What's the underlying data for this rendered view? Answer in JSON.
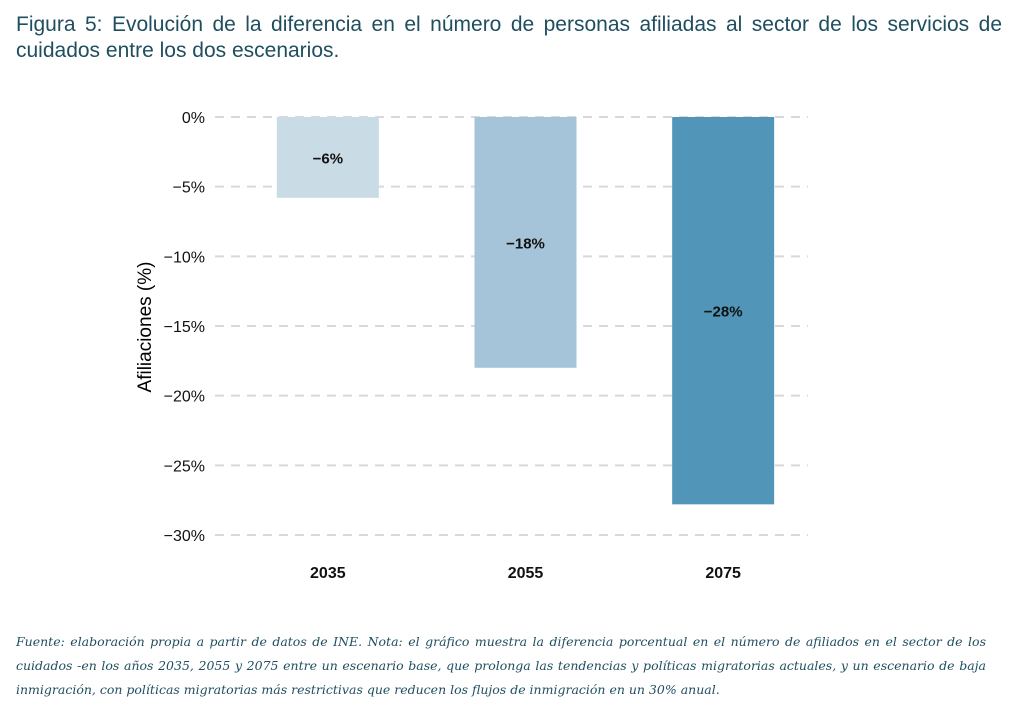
{
  "caption": "Figura 5: Evolución de la diferencia en el número de personas afiliadas al sector de los servicios de cuidados entre los dos escenarios.",
  "note": "Fuente: elaboración propia a partir de datos de INE. Nota: el gráfico muestra la diferencia porcentual en el número de afiliados en el sector de los cuidados -en los años 2035, 2055 y 2075 entre un escenario base, que prolonga las tendencias y políticas migratorias actuales, y un escenario de baja inmigración, con políticas migratorias más restrictivas que reducen los flujos de inmigración en un 30% anual.",
  "chart_data": {
    "type": "bar",
    "categories": [
      "2035",
      "2055",
      "2075"
    ],
    "values": [
      -5.8,
      -18.0,
      -27.8
    ],
    "data_labels": [
      "−6%",
      "−18%",
      "−28%"
    ],
    "ylabel": "Afiliaciones (%)",
    "ylim": [
      -30,
      0
    ],
    "yticks": [
      0,
      -5,
      -10,
      -15,
      -20,
      -25,
      -30
    ],
    "ytick_labels": [
      "0%",
      "−5%",
      "−10%",
      "−15%",
      "−20%",
      "−25%",
      "−30%"
    ],
    "grid": true,
    "bar_colors": [
      "#c9dbe5",
      "#a6c4d9",
      "#5195b8"
    ]
  }
}
